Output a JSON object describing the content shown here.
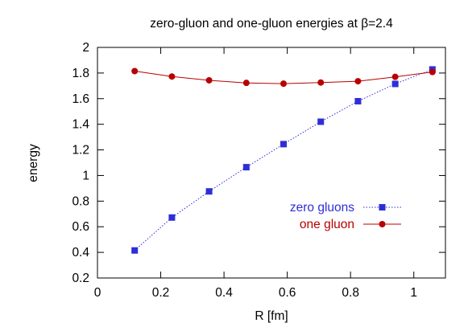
{
  "chart_data": {
    "type": "line",
    "title": "zero-gluon and one-gluon energies  at β=2.4",
    "xlabel": "R [fm]",
    "ylabel": "energy",
    "xlim": [
      0,
      1.1
    ],
    "ylim": [
      0.2,
      2
    ],
    "xticks": [
      0,
      0.2,
      0.4,
      0.6,
      0.8,
      1
    ],
    "xtick_labels": [
      "0",
      "0.2",
      "0.4",
      "0.6",
      "0.8",
      "1"
    ],
    "yticks": [
      0.2,
      0.4,
      0.6,
      0.8,
      1,
      1.2,
      1.4,
      1.6,
      1.8,
      2
    ],
    "ytick_labels": [
      "0.2",
      "0.4",
      "0.6",
      "0.8",
      "1",
      "1.2",
      "1.4",
      "1.6",
      "1.8",
      "2"
    ],
    "grid": false,
    "legend_position": "center-right",
    "series": [
      {
        "name": "zero gluons",
        "color": "#2e2ed8",
        "marker": "square",
        "line_style": "dotted",
        "x": [
          0.1176,
          0.2353,
          0.3529,
          0.4706,
          0.5882,
          0.7059,
          0.8235,
          0.9412,
          1.0588
        ],
        "y": [
          0.415,
          0.672,
          0.876,
          1.065,
          1.245,
          1.42,
          1.58,
          1.715,
          1.828
        ]
      },
      {
        "name": "one gluon",
        "color": "#b80000",
        "marker": "circle",
        "line_style": "solid",
        "x": [
          0.1176,
          0.2353,
          0.3529,
          0.4706,
          0.5882,
          0.7059,
          0.8235,
          0.9412,
          1.0588
        ],
        "y": [
          1.815,
          1.773,
          1.743,
          1.723,
          1.717,
          1.726,
          1.736,
          1.77,
          1.808
        ]
      }
    ]
  }
}
